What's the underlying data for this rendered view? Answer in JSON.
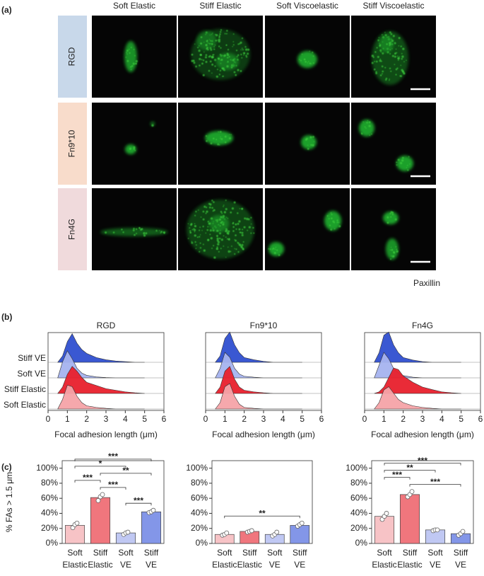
{
  "panel_labels": [
    "(a)",
    "(b)",
    "(c)"
  ],
  "panel_a": {
    "columns": [
      "Soft Elastic",
      "Stiff Elastic",
      "Soft Viscoelastic",
      "Stiff Viscoelastic"
    ],
    "rows": [
      {
        "label": "RGD",
        "color": "#c8d8ea"
      },
      {
        "label": "Fn9*10",
        "color": "#f8dccb"
      },
      {
        "label": "Fn4G",
        "color": "#f0dadc"
      }
    ],
    "stain": "Paxillin",
    "stain_color": "#1fa34a"
  },
  "chart_data": [
    {
      "type": "ridgeline",
      "title": "RGD",
      "xlabel": "Focal adhesion length (μm)",
      "xlim": [
        0,
        6
      ],
      "xticks": [
        0,
        1,
        2,
        3,
        4,
        5,
        6
      ],
      "x": [
        0.5,
        0.75,
        1,
        1.25,
        1.5,
        1.75,
        2,
        2.5,
        3,
        3.5,
        4,
        4.5,
        5
      ],
      "series": [
        {
          "name": "Soft Elastic",
          "color": "#f5a3a8",
          "values": [
            0,
            0.3,
            0.75,
            0.7,
            0.4,
            0.2,
            0.1,
            0.05,
            0.02,
            0,
            0,
            0,
            0
          ]
        },
        {
          "name": "Stiff Elastic",
          "color": "#e8202c",
          "values": [
            0,
            0.2,
            0.6,
            0.85,
            0.7,
            0.5,
            0.35,
            0.25,
            0.15,
            0.1,
            0.05,
            0.02,
            0
          ]
        },
        {
          "name": "Soft VE",
          "color": "#a5b3ef",
          "values": [
            0,
            0.5,
            0.85,
            0.6,
            0.3,
            0.15,
            0.08,
            0.03,
            0.01,
            0,
            0,
            0,
            0
          ]
        },
        {
          "name": "Stiff VE",
          "color": "#2f4fd0",
          "values": [
            0,
            0.2,
            0.65,
            0.9,
            0.6,
            0.4,
            0.28,
            0.15,
            0.08,
            0.04,
            0.02,
            0,
            0
          ]
        }
      ]
    },
    {
      "type": "ridgeline",
      "title": "Fn9*10",
      "xlabel": "Focal adhesion length (μm)",
      "xlim": [
        0,
        6
      ],
      "xticks": [
        0,
        1,
        2,
        3,
        4,
        5,
        6
      ],
      "x": [
        0.5,
        0.75,
        1,
        1.25,
        1.5,
        1.75,
        2,
        2.5,
        3,
        3.5,
        4,
        4.5,
        5
      ],
      "series": [
        {
          "color": "#f5a3a8",
          "values": [
            0,
            0.2,
            0.7,
            0.8,
            0.4,
            0.15,
            0.05,
            0.02,
            0,
            0,
            0,
            0,
            0
          ]
        },
        {
          "color": "#e8202c",
          "values": [
            0,
            0.2,
            0.7,
            0.85,
            0.45,
            0.2,
            0.1,
            0.05,
            0.02,
            0,
            0,
            0,
            0
          ]
        },
        {
          "color": "#a5b3ef",
          "values": [
            0,
            0.3,
            0.8,
            0.65,
            0.3,
            0.12,
            0.05,
            0.02,
            0,
            0,
            0,
            0,
            0
          ]
        },
        {
          "color": "#2f4fd0",
          "values": [
            0,
            0.2,
            0.75,
            0.95,
            0.55,
            0.3,
            0.15,
            0.08,
            0.03,
            0,
            0,
            0,
            0
          ]
        }
      ]
    },
    {
      "type": "ridgeline",
      "title": "Fn4G",
      "xlabel": "Focal adhesion length (μm)",
      "xlim": [
        0,
        6
      ],
      "xticks": [
        0,
        1,
        2,
        3,
        4,
        5,
        6
      ],
      "x": [
        0.5,
        0.75,
        1,
        1.25,
        1.5,
        1.75,
        2,
        2.5,
        3,
        3.5,
        4,
        4.5,
        5
      ],
      "series": [
        {
          "color": "#f5a3a8",
          "values": [
            0,
            0.2,
            0.6,
            0.7,
            0.5,
            0.3,
            0.2,
            0.1,
            0.05,
            0.02,
            0,
            0,
            0
          ]
        },
        {
          "color": "#e8202c",
          "values": [
            0,
            0.05,
            0.2,
            0.5,
            0.8,
            0.75,
            0.55,
            0.35,
            0.2,
            0.12,
            0.05,
            0.02,
            0
          ]
        },
        {
          "color": "#a5b3ef",
          "values": [
            0,
            0.4,
            0.8,
            0.6,
            0.3,
            0.15,
            0.07,
            0.02,
            0,
            0,
            0,
            0,
            0
          ]
        },
        {
          "color": "#2f4fd0",
          "values": [
            0,
            0.3,
            0.85,
            0.95,
            0.55,
            0.3,
            0.15,
            0.07,
            0.02,
            0,
            0,
            0,
            0
          ]
        }
      ]
    },
    {
      "type": "bar",
      "ylabel": "% FAs > 1.5 μm",
      "categories": [
        [
          "Soft",
          "Elastic"
        ],
        [
          "Stiff",
          "Elastic"
        ],
        [
          "Soft",
          "VE"
        ],
        [
          "Stiff",
          "VE"
        ]
      ],
      "values": [
        24,
        61,
        14,
        42
      ],
      "colors": [
        "#f7c3c6",
        "#f0767d",
        "#c0c8f3",
        "#8396e8"
      ],
      "points": [
        [
          21,
          25,
          27
        ],
        [
          57,
          62,
          65
        ],
        [
          12,
          14,
          15
        ],
        [
          41,
          42,
          44
        ]
      ],
      "ylim": [
        0,
        110
      ],
      "yticks": [
        {
          "value": 0,
          "label": "0%"
        },
        {
          "value": 20,
          "label": "20%"
        },
        {
          "value": 40,
          "label": "40%"
        },
        {
          "value": 60,
          "label": "60%"
        },
        {
          "value": 80,
          "label": "80%"
        },
        {
          "value": 100,
          "label": "100%"
        }
      ],
      "significance": [
        {
          "between": [
            0,
            3
          ],
          "label": "***"
        },
        {
          "between": [
            0,
            2
          ],
          "label": "*"
        },
        {
          "between": [
            1,
            3
          ],
          "label": "**"
        },
        {
          "between": [
            0,
            1
          ],
          "label": "***"
        },
        {
          "between": [
            1,
            2
          ],
          "label": "***"
        },
        {
          "between": [
            2,
            3
          ],
          "label": "***"
        }
      ]
    },
    {
      "type": "bar",
      "categories": [
        [
          "Soft",
          "Elastic"
        ],
        [
          "Stiff",
          "Elastic"
        ],
        [
          "Soft",
          "VE"
        ],
        [
          "Stiff",
          "VE"
        ]
      ],
      "values": [
        12,
        16,
        12,
        24
      ],
      "colors": [
        "#f7c3c6",
        "#f0767d",
        "#c0c8f3",
        "#8396e8"
      ],
      "points": [
        [
          11,
          12,
          14
        ],
        [
          15,
          16,
          17
        ],
        [
          10,
          12,
          15
        ],
        [
          23,
          25,
          27
        ]
      ],
      "ylim": [
        0,
        110
      ],
      "yticks": [
        {
          "value": 0,
          "label": "0%"
        },
        {
          "value": 20,
          "label": "20%"
        },
        {
          "value": 40,
          "label": "40%"
        },
        {
          "value": 60,
          "label": "60%"
        },
        {
          "value": 80,
          "label": "80%"
        },
        {
          "value": 100,
          "label": "100%"
        }
      ],
      "significance": [
        {
          "between": [
            0,
            3
          ],
          "label": "**"
        }
      ]
    },
    {
      "type": "bar",
      "categories": [
        [
          "Soft",
          "Elastic"
        ],
        [
          "Stiff",
          "Elastic"
        ],
        [
          "Soft",
          "VE"
        ],
        [
          "Stiff",
          "VE"
        ]
      ],
      "values": [
        36,
        65,
        18,
        13
      ],
      "colors": [
        "#f7c3c6",
        "#f0767d",
        "#c0c8f3",
        "#8396e8"
      ],
      "points": [
        [
          32,
          36,
          40
        ],
        [
          62,
          65,
          69
        ],
        [
          17,
          18,
          18
        ],
        [
          11,
          13,
          16
        ]
      ],
      "ylim": [
        0,
        110
      ],
      "yticks": [
        {
          "value": 0,
          "label": "0%"
        },
        {
          "value": 20,
          "label": "20%"
        },
        {
          "value": 40,
          "label": "40%"
        },
        {
          "value": 60,
          "label": "60%"
        },
        {
          "value": 80,
          "label": "80%"
        },
        {
          "value": 100,
          "label": "100%"
        }
      ],
      "significance": [
        {
          "between": [
            0,
            3
          ],
          "label": "***"
        },
        {
          "between": [
            0,
            2
          ],
          "label": "**"
        },
        {
          "between": [
            0,
            1
          ],
          "label": "***"
        },
        {
          "between": [
            1,
            3
          ],
          "label": "***"
        }
      ]
    }
  ]
}
